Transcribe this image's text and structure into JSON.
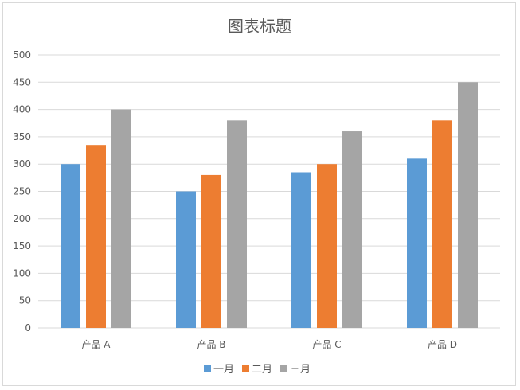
{
  "chart_data": {
    "type": "bar",
    "title": "图表标题",
    "categories": [
      "产品 A",
      "产品 B",
      "产品 C",
      "产品 D"
    ],
    "series": [
      {
        "name": "一月",
        "color": "#5b9bd5",
        "values": [
          300,
          250,
          285,
          310
        ]
      },
      {
        "name": "二月",
        "color": "#ed7d31",
        "values": [
          335,
          280,
          300,
          380
        ]
      },
      {
        "name": "三月",
        "color": "#a5a5a5",
        "values": [
          400,
          380,
          360,
          450
        ]
      }
    ],
    "ylim": [
      0,
      500
    ],
    "yticks": [
      0,
      50,
      100,
      150,
      200,
      250,
      300,
      350,
      400,
      450,
      500
    ],
    "grid": true,
    "legend": "bottom"
  }
}
